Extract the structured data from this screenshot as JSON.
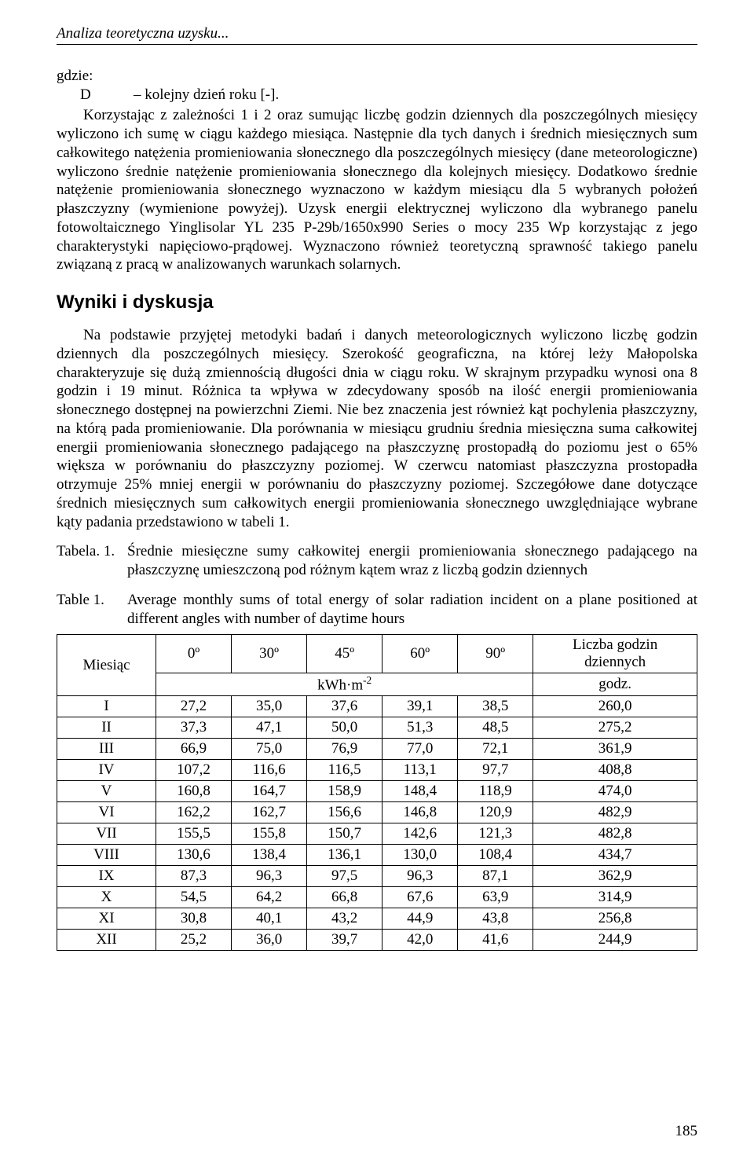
{
  "page": {
    "running_head": "Analiza teoretyczna uzysku...",
    "page_number": "185"
  },
  "definitions": {
    "where_label": "gdzie:",
    "D_symbol": "D",
    "D_def": "– kolejny dzień roku [-]."
  },
  "paragraphs": {
    "p1": "Korzystając z zależności 1 i 2 oraz sumując liczbę godzin dziennych dla poszczególnych miesięcy wyliczono ich sumę w ciągu każdego miesiąca. Następnie dla tych danych i średnich miesięcznych sum całkowitego natężenia promieniowania słonecznego dla poszczególnych miesięcy (dane meteorologiczne) wyliczono średnie natężenie promieniowania słonecznego dla kolejnych miesięcy. Dodatkowo średnie natężenie promieniowania słonecznego wyznaczono w każdym miesiącu dla 5 wybranych położeń płaszczyzny (wymienione powyżej). Uzysk energii elektrycznej wyliczono dla wybranego panelu fotowoltaicznego Yinglisolar YL 235 P-29b/1650x990 Series o mocy 235 Wp korzystając z jego charakterystyki napięciowo-prądowej. Wyznaczono również teoretyczną sprawność takiego panelu związaną z pracą w analizowanych warunkach solarnych.",
    "section_heading": "Wyniki i dyskusja",
    "p2": "Na podstawie przyjętej metodyki badań i danych meteorologicznych wyliczono liczbę godzin dziennych dla poszczególnych miesięcy. Szerokość geograficzna, na której leży Małopolska charakteryzuje się dużą zmiennością długości dnia w ciągu roku. W skrajnym przypadku wynosi ona 8 godzin i 19 minut. Różnica ta wpływa w zdecydowany sposób na ilość energii promieniowania słonecznego dostępnej na powierzchni Ziemi. Nie bez znaczenia jest również kąt pochylenia płaszczyzny, na którą pada promieniowanie. Dla porównania w miesiącu grudniu średnia miesięczna suma całkowitej energii promieniowania słonecznego padającego na płaszczyznę prostopadłą do poziomu jest o 65% większa w porównaniu do płaszczyzny poziomej. W czerwcu natomiast płaszczyzna prostopadła otrzymuje 25% mniej energii w porównaniu do płaszczyzny poziomej. Szczegółowe dane dotyczące średnich miesięcznych sum całkowitych energii promieniowania słonecznego uwzględniające wybrane kąty padania przedstawiono w tabeli 1."
  },
  "table": {
    "caption_pl_label": "Tabela. 1.",
    "caption_pl": "Średnie miesięczne sumy całkowitej energii promieniowania słonecznego padającego na płaszczyznę umieszczoną pod różnym kątem wraz z liczbą godzin dziennych",
    "caption_en_label": "Table 1.",
    "caption_en": "Average monthly sums of total energy of solar radiation incident on a plane positioned at different angles with number of daytime hours",
    "col_month": "Miesiąc",
    "angles": [
      "0º",
      "30º",
      "45º",
      "60º",
      "90º"
    ],
    "col_hours_line1": "Liczba godzin",
    "col_hours_line2": "dziennych",
    "unit_energy": "kWh·m",
    "unit_energy_sup": "-2",
    "unit_hours": "godz.",
    "months": [
      "I",
      "II",
      "III",
      "IV",
      "V",
      "VI",
      "VII",
      "VIII",
      "IX",
      "X",
      "XI",
      "XII"
    ],
    "rows": [
      [
        "27,2",
        "35,0",
        "37,6",
        "39,1",
        "38,5",
        "260,0"
      ],
      [
        "37,3",
        "47,1",
        "50,0",
        "51,3",
        "48,5",
        "275,2"
      ],
      [
        "66,9",
        "75,0",
        "76,9",
        "77,0",
        "72,1",
        "361,9"
      ],
      [
        "107,2",
        "116,6",
        "116,5",
        "113,1",
        "97,7",
        "408,8"
      ],
      [
        "160,8",
        "164,7",
        "158,9",
        "148,4",
        "118,9",
        "474,0"
      ],
      [
        "162,2",
        "162,7",
        "156,6",
        "146,8",
        "120,9",
        "482,9"
      ],
      [
        "155,5",
        "155,8",
        "150,7",
        "142,6",
        "121,3",
        "482,8"
      ],
      [
        "130,6",
        "138,4",
        "136,1",
        "130,0",
        "108,4",
        "434,7"
      ],
      [
        "87,3",
        "96,3",
        "97,5",
        "96,3",
        "87,1",
        "362,9"
      ],
      [
        "54,5",
        "64,2",
        "66,8",
        "67,6",
        "63,9",
        "314,9"
      ],
      [
        "30,8",
        "40,1",
        "43,2",
        "44,9",
        "43,8",
        "256,8"
      ],
      [
        "25,2",
        "36,0",
        "39,7",
        "42,0",
        "41,6",
        "244,9"
      ]
    ]
  },
  "style": {
    "font_body_pt": 19,
    "font_heading_pt": 24,
    "text_color": "#000000",
    "background_color": "#ffffff",
    "border_color": "#000000"
  }
}
